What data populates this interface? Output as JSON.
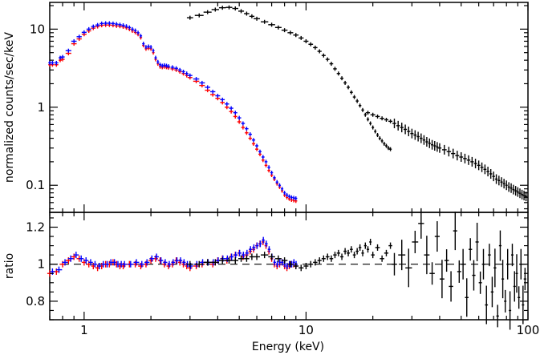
{
  "chart_data": [
    {
      "panel": "spectrum",
      "type": "scatter",
      "x_scale": "log",
      "y_scale": "log",
      "xlim": [
        0.7,
        100
      ],
      "ylim": [
        0.045,
        22
      ],
      "ylabel": "normalized counts/sec/keV",
      "y_ticks": [
        {
          "value": 0.1,
          "label": "0.1"
        },
        {
          "value": 1,
          "label": "1"
        },
        {
          "value": 10,
          "label": "10"
        }
      ],
      "series": [
        {
          "color": "#ff0000",
          "x": [
            0.7,
            0.72,
            0.75,
            0.78,
            0.8,
            0.85,
            0.9,
            0.95,
            1.0,
            1.05,
            1.1,
            1.15,
            1.2,
            1.25,
            1.3,
            1.35,
            1.4,
            1.45,
            1.5,
            1.55,
            1.6,
            1.65,
            1.7,
            1.75,
            1.8,
            1.85,
            1.9,
            1.95,
            2.0,
            2.05,
            2.1,
            2.15,
            2.2,
            2.25,
            2.3,
            2.35,
            2.4,
            2.5,
            2.6,
            2.7,
            2.8,
            2.9,
            3.0,
            3.2,
            3.4,
            3.6,
            3.8,
            4.0,
            4.2,
            4.4,
            4.6,
            4.8,
            5.0,
            5.2,
            5.4,
            5.6,
            5.8,
            6.0,
            6.2,
            6.4,
            6.6,
            6.8,
            7.0,
            7.2,
            7.4,
            7.6,
            7.8,
            8.0,
            8.2,
            8.4,
            8.6,
            8.8,
            9.0
          ],
          "y": [
            3.5,
            3.5,
            3.5,
            4.0,
            4.1,
            4.9,
            6.5,
            7.5,
            8.6,
            9.5,
            10.3,
            10.8,
            11.2,
            11.3,
            11.3,
            11.2,
            11.0,
            10.9,
            10.7,
            10.4,
            10.0,
            9.5,
            9.1,
            8.6,
            7.8,
            6.2,
            5.6,
            5.7,
            5.6,
            5.0,
            4.1,
            3.6,
            3.3,
            3.25,
            3.3,
            3.25,
            3.2,
            3.1,
            3.0,
            2.85,
            2.7,
            2.55,
            2.4,
            2.15,
            1.9,
            1.65,
            1.45,
            1.3,
            1.15,
            1.0,
            0.88,
            0.76,
            0.65,
            0.55,
            0.47,
            0.4,
            0.34,
            0.29,
            0.25,
            0.21,
            0.18,
            0.155,
            0.135,
            0.12,
            0.105,
            0.095,
            0.085,
            0.075,
            0.07,
            0.067,
            0.065,
            0.064,
            0.063
          ]
        },
        {
          "color": "#0000ff",
          "x": [
            0.7,
            0.72,
            0.75,
            0.78,
            0.8,
            0.85,
            0.9,
            0.95,
            1.0,
            1.05,
            1.1,
            1.15,
            1.2,
            1.25,
            1.3,
            1.35,
            1.4,
            1.45,
            1.5,
            1.55,
            1.6,
            1.65,
            1.7,
            1.75,
            1.8,
            1.85,
            1.9,
            1.95,
            2.0,
            2.05,
            2.1,
            2.15,
            2.2,
            2.25,
            2.3,
            2.35,
            2.4,
            2.5,
            2.6,
            2.7,
            2.8,
            2.9,
            3.0,
            3.2,
            3.4,
            3.6,
            3.8,
            4.0,
            4.2,
            4.4,
            4.6,
            4.8,
            5.0,
            5.2,
            5.4,
            5.6,
            5.8,
            6.0,
            6.2,
            6.4,
            6.6,
            6.8,
            7.0,
            7.2,
            7.4,
            7.6,
            7.8,
            8.0,
            8.2,
            8.4,
            8.6,
            8.8,
            9.0
          ],
          "y": [
            3.7,
            3.7,
            3.7,
            4.3,
            4.4,
            5.3,
            7.0,
            8.0,
            9.1,
            10.0,
            10.8,
            11.3,
            11.8,
            11.9,
            11.9,
            11.8,
            11.6,
            11.4,
            11.2,
            10.9,
            10.5,
            10.0,
            9.6,
            9.0,
            8.2,
            6.5,
            5.9,
            6.0,
            5.9,
            5.3,
            4.3,
            3.8,
            3.5,
            3.4,
            3.45,
            3.4,
            3.35,
            3.25,
            3.15,
            3.0,
            2.85,
            2.7,
            2.55,
            2.3,
            2.05,
            1.8,
            1.58,
            1.4,
            1.25,
            1.1,
            0.97,
            0.85,
            0.73,
            0.62,
            0.53,
            0.45,
            0.38,
            0.32,
            0.27,
            0.23,
            0.2,
            0.17,
            0.145,
            0.125,
            0.11,
            0.1,
            0.09,
            0.08,
            0.075,
            0.072,
            0.07,
            0.069,
            0.068
          ]
        },
        {
          "color": "#000000",
          "x": [
            3.0,
            3.3,
            3.6,
            3.9,
            4.2,
            4.5,
            4.8,
            5.1,
            5.4,
            5.7,
            6.0,
            6.5,
            7.0,
            7.5,
            8.0,
            8.5,
            9.0,
            9.5,
            10.0,
            10.5,
            11.0,
            11.5,
            12.0,
            12.5,
            13.0,
            13.5,
            14.0,
            14.5,
            15.0,
            15.5,
            16.0,
            16.5,
            17.0,
            17.5,
            18.0,
            18.5,
            19.0,
            19.5,
            20.0,
            20.5,
            21.0,
            21.5,
            22.0,
            22.5,
            23.0,
            23.5,
            24.0
          ],
          "y": [
            14.0,
            15.0,
            16.5,
            17.8,
            18.8,
            19.0,
            18.4,
            17.0,
            15.8,
            14.6,
            13.6,
            12.4,
            11.4,
            10.5,
            9.7,
            9.0,
            8.4,
            7.7,
            7.0,
            6.4,
            5.8,
            5.2,
            4.6,
            4.1,
            3.6,
            3.1,
            2.7,
            2.35,
            2.05,
            1.8,
            1.55,
            1.35,
            1.2,
            1.05,
            0.92,
            0.8,
            0.7,
            0.62,
            0.55,
            0.49,
            0.44,
            0.4,
            0.37,
            0.34,
            0.32,
            0.3,
            0.29
          ]
        },
        {
          "color": "#000000",
          "x": [
            19.0,
            20.0,
            21.0,
            22.0,
            23.0,
            24.0,
            25.0,
            26.0,
            27.0,
            28.0,
            29.0,
            30.0,
            31.0,
            32.0,
            33.0,
            34.0,
            35.0,
            36.0,
            37.0,
            38.0,
            39.0,
            40.0,
            42.0,
            44.0,
            46.0,
            48.0,
            50.0,
            52.0,
            54.0,
            56.0,
            58.0,
            60.0,
            62.0,
            64.0,
            66.0,
            68.0,
            70.0,
            72.0,
            74.0,
            76.0,
            78.0,
            80.0,
            82.0,
            84.0,
            86.0,
            88.0,
            90.0,
            92.0,
            94.0,
            96.0,
            98.0
          ],
          "y": [
            0.85,
            0.8,
            0.76,
            0.72,
            0.69,
            0.66,
            0.62,
            0.58,
            0.55,
            0.52,
            0.49,
            0.46,
            0.44,
            0.42,
            0.4,
            0.38,
            0.36,
            0.345,
            0.33,
            0.32,
            0.31,
            0.3,
            0.285,
            0.27,
            0.255,
            0.24,
            0.23,
            0.22,
            0.21,
            0.2,
            0.19,
            0.18,
            0.17,
            0.16,
            0.15,
            0.14,
            0.13,
            0.12,
            0.115,
            0.11,
            0.105,
            0.1,
            0.095,
            0.092,
            0.088,
            0.085,
            0.082,
            0.079,
            0.076,
            0.074,
            0.072
          ]
        }
      ]
    },
    {
      "panel": "ratio",
      "type": "scatter",
      "x_scale": "log",
      "xlim": [
        0.7,
        100
      ],
      "ylim": [
        0.7,
        1.28
      ],
      "xlabel": "Energy (keV)",
      "ylabel": "ratio",
      "reference_line": 1,
      "x_ticks": [
        {
          "value": 1,
          "label": "1"
        },
        {
          "value": 10,
          "label": "10"
        },
        {
          "value": 100,
          "label": "100"
        }
      ],
      "y_ticks": [
        {
          "value": 0.8,
          "label": "0.8"
        },
        {
          "value": 1,
          "label": "1"
        },
        {
          "value": 1.2,
          "label": "1.2"
        }
      ],
      "series": [
        {
          "color": "#ff0000",
          "x": [
            0.7,
            0.75,
            0.8,
            0.85,
            0.9,
            0.95,
            1.0,
            1.05,
            1.1,
            1.15,
            1.2,
            1.25,
            1.3,
            1.35,
            1.4,
            1.45,
            1.5,
            1.6,
            1.7,
            1.8,
            1.9,
            2.0,
            2.1,
            2.2,
            2.3,
            2.4,
            2.5,
            2.6,
            2.7,
            2.8,
            2.9,
            3.0,
            3.2,
            3.4,
            3.6,
            3.8,
            4.0,
            4.2,
            4.4,
            4.6,
            4.8,
            5.0,
            5.2,
            5.4,
            5.6,
            5.8,
            6.0,
            6.2,
            6.4,
            6.6,
            6.8,
            7.0,
            7.2,
            7.4,
            7.6,
            7.8,
            8.0,
            8.2,
            8.4,
            8.6,
            8.8,
            9.0
          ],
          "y": [
            0.95,
            0.96,
            1.0,
            1.02,
            1.04,
            1.03,
            1.01,
            1.0,
            0.99,
            0.98,
            0.99,
            1.0,
            1.0,
            1.01,
            1.0,
            0.99,
            0.99,
            1.0,
            1.0,
            0.99,
            1.0,
            1.02,
            1.03,
            1.02,
            1.0,
            0.99,
            1.0,
            1.02,
            1.01,
            1.0,
            0.99,
            0.98,
            0.99,
            1.0,
            1.01,
            1.0,
            1.02,
            1.03,
            1.02,
            1.04,
            1.05,
            1.06,
            1.04,
            1.05,
            1.07,
            1.08,
            1.1,
            1.11,
            1.12,
            1.1,
            1.07,
            1.03,
            1.0,
            0.99,
            1.0,
            1.01,
            0.99,
            0.98,
            0.99,
            1.0,
            1.0,
            0.99
          ]
        },
        {
          "color": "#0000ff",
          "x": [
            0.72,
            0.77,
            0.82,
            0.87,
            0.92,
            0.97,
            1.02,
            1.07,
            1.12,
            1.17,
            1.22,
            1.27,
            1.32,
            1.37,
            1.42,
            1.47,
            1.52,
            1.62,
            1.72,
            1.82,
            1.92,
            2.02,
            2.12,
            2.22,
            2.32,
            2.42,
            2.52,
            2.62,
            2.72,
            2.82,
            2.92,
            3.02,
            3.22,
            3.42,
            3.62,
            3.82,
            4.02,
            4.22,
            4.42,
            4.62,
            4.82,
            5.02,
            5.22,
            5.42,
            5.62,
            5.82,
            6.02,
            6.22,
            6.42,
            6.62,
            6.82,
            7.02,
            7.22,
            7.42,
            7.62,
            7.82,
            8.02,
            8.22,
            8.42,
            8.62,
            8.82,
            9.02
          ],
          "y": [
            0.96,
            0.97,
            1.01,
            1.03,
            1.05,
            1.03,
            1.02,
            1.01,
            1.0,
            0.99,
            1.0,
            1.0,
            1.01,
            1.01,
            1.0,
            1.0,
            1.0,
            1.0,
            1.01,
            1.0,
            1.01,
            1.03,
            1.04,
            1.02,
            1.01,
            1.0,
            1.01,
            1.02,
            1.02,
            1.01,
            1.0,
            0.99,
            1.0,
            1.01,
            1.01,
            1.01,
            1.02,
            1.03,
            1.03,
            1.04,
            1.05,
            1.06,
            1.05,
            1.06,
            1.08,
            1.09,
            1.1,
            1.11,
            1.13,
            1.11,
            1.08,
            1.04,
            1.01,
            1.0,
            1.01,
            1.01,
            1.0,
            0.99,
            1.0,
            1.0,
            1.01,
            1.0
          ]
        },
        {
          "color": "#000000",
          "x": [
            3.0,
            3.3,
            3.6,
            3.9,
            4.2,
            4.5,
            4.8,
            5.1,
            5.4,
            5.7,
            6.0,
            6.5,
            7.0,
            7.5,
            8.0,
            8.5,
            9.0,
            9.5,
            10.0,
            10.5,
            11.0,
            11.5,
            12.0,
            12.5,
            13.0,
            13.5,
            14.0,
            14.5,
            15.0,
            15.5,
            16.0,
            16.5,
            17.0,
            17.5,
            18.0,
            18.5,
            19.0,
            19.5,
            20.0,
            21.0,
            22.0,
            23.0,
            24.0
          ],
          "y": [
            1.0,
            1.0,
            1.01,
            1.01,
            1.02,
            1.02,
            1.02,
            1.03,
            1.03,
            1.04,
            1.04,
            1.05,
            1.04,
            1.03,
            1.02,
            1.0,
            0.99,
            0.98,
            0.99,
            1.0,
            1.01,
            1.02,
            1.03,
            1.04,
            1.03,
            1.05,
            1.06,
            1.04,
            1.07,
            1.06,
            1.08,
            1.05,
            1.07,
            1.09,
            1.06,
            1.1,
            1.08,
            1.12,
            1.05,
            1.09,
            1.03,
            1.06,
            1.1
          ]
        },
        {
          "color": "#000000",
          "x": [
            25.0,
            27.0,
            29.0,
            31.0,
            33.0,
            35.0,
            37.0,
            39.0,
            41.0,
            43.0,
            45.0,
            47.0,
            49.0,
            51.0,
            53.0,
            55.0,
            57.0,
            59.0,
            61.0,
            63.0,
            65.0,
            67.0,
            69.0,
            71.0,
            73.0,
            75.0,
            77.0,
            79.0,
            81.0,
            83.0,
            85.0,
            87.0,
            89.0,
            91.0,
            93.0,
            95.0,
            97.0
          ],
          "y": [
            1.0,
            1.05,
            0.98,
            1.12,
            1.22,
            1.05,
            0.95,
            1.15,
            0.92,
            1.02,
            0.88,
            1.18,
            0.96,
            1.0,
            0.82,
            1.08,
            0.94,
            1.12,
            0.9,
            1.0,
            0.78,
            1.05,
            0.85,
            0.98,
            0.72,
            1.1,
            0.92,
            0.8,
            1.0,
            0.75,
            1.05,
            0.88,
            0.95,
            0.82,
            1.0,
            0.78,
            0.92
          ]
        }
      ]
    }
  ]
}
